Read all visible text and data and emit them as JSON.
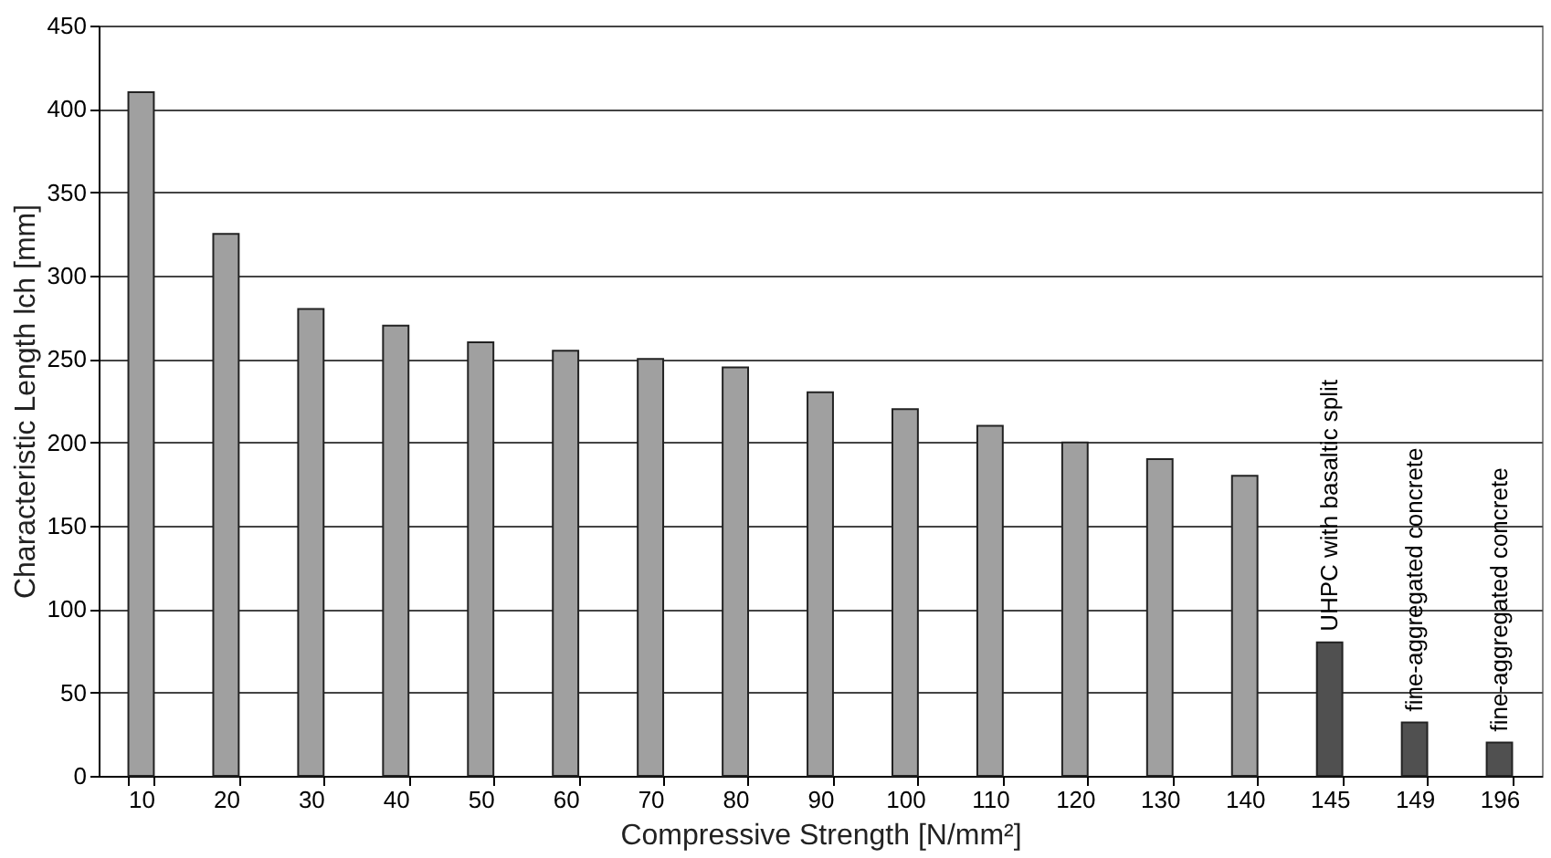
{
  "chart_data": {
    "type": "bar",
    "xlabel": "Compressive Strength [N/mm²]",
    "ylabel": "Characteristic Length lch [mm]",
    "categories": [
      "10",
      "20",
      "30",
      "40",
      "50",
      "60",
      "70",
      "80",
      "90",
      "100",
      "110",
      "120",
      "130",
      "140",
      "145",
      "149",
      "196"
    ],
    "values": [
      410,
      325,
      280,
      270,
      260,
      255,
      250,
      245,
      230,
      220,
      210,
      200,
      190,
      180,
      80,
      32,
      20
    ],
    "colors": [
      "#a0a0a0",
      "#a0a0a0",
      "#a0a0a0",
      "#a0a0a0",
      "#a0a0a0",
      "#a0a0a0",
      "#a0a0a0",
      "#a0a0a0",
      "#a0a0a0",
      "#a0a0a0",
      "#a0a0a0",
      "#a0a0a0",
      "#a0a0a0",
      "#a0a0a0",
      "#505050",
      "#505050",
      "#505050"
    ],
    "ylim": [
      0,
      450
    ],
    "yticks": [
      0,
      50,
      100,
      150,
      200,
      250,
      300,
      350,
      400,
      450
    ],
    "grid": "y",
    "annotations": [
      {
        "text": "UHPC with basaltic split",
        "x": "145",
        "y": 80
      },
      {
        "text": "fine-aggregated concrete",
        "x": "149",
        "y": 32
      },
      {
        "text": "fine-aggregated concrete",
        "x": "196",
        "y": 20
      }
    ]
  }
}
